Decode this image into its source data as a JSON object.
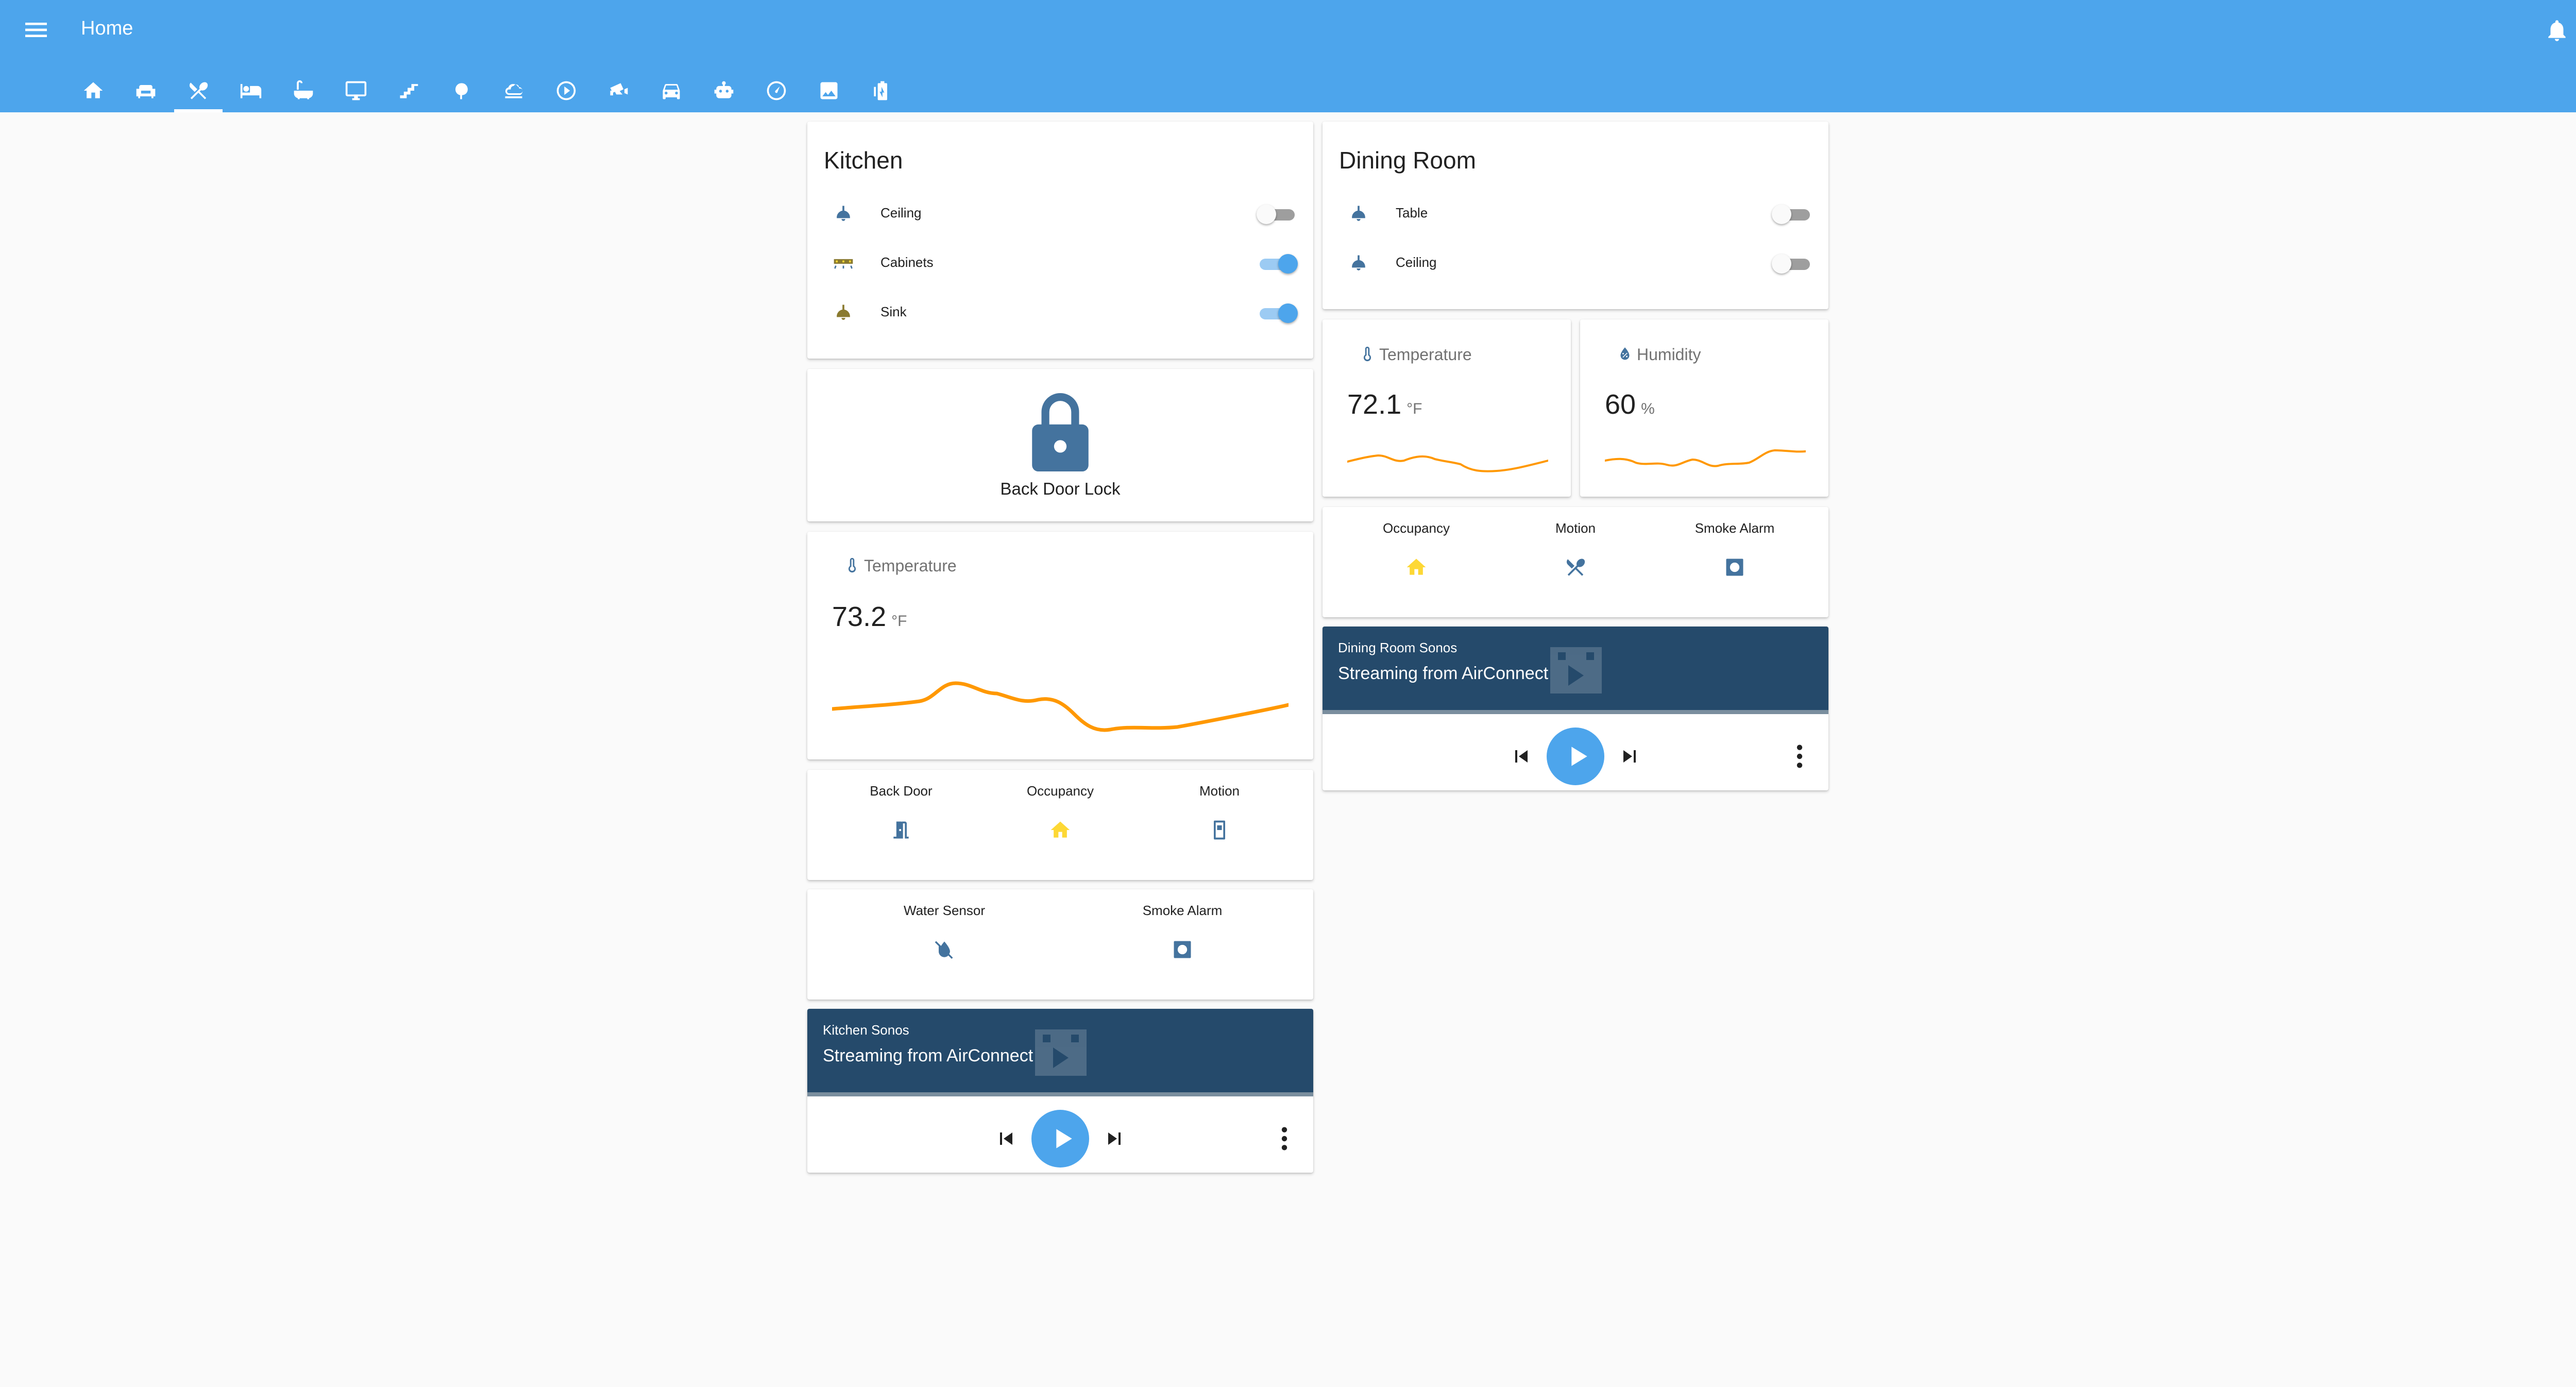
{
  "header": {
    "title": "Home",
    "tabs": [
      {
        "icon": "home-icon",
        "active": false
      },
      {
        "icon": "sofa-icon",
        "active": false
      },
      {
        "icon": "silverware-icon",
        "active": true
      },
      {
        "icon": "bed-icon",
        "active": false
      },
      {
        "icon": "bathtub-icon",
        "active": false
      },
      {
        "icon": "monitor-icon",
        "active": false
      },
      {
        "icon": "stairs-icon",
        "active": false
      },
      {
        "icon": "tree-icon",
        "active": false
      },
      {
        "icon": "weather-icon",
        "active": false
      },
      {
        "icon": "play-circle-icon",
        "active": false
      },
      {
        "icon": "cctv-icon",
        "active": false
      },
      {
        "icon": "car-icon",
        "active": false
      },
      {
        "icon": "robot-icon",
        "active": false
      },
      {
        "icon": "gauge-icon",
        "active": false
      },
      {
        "icon": "image-icon",
        "active": false
      },
      {
        "icon": "battery-charging-icon",
        "active": false
      }
    ]
  },
  "kitchen": {
    "title": "Kitchen",
    "entities": [
      {
        "label": "Ceiling",
        "icon": "ceiling-light-icon",
        "on": false
      },
      {
        "label": "Cabinets",
        "icon": "led-strip-icon",
        "on": true
      },
      {
        "label": "Sink",
        "icon": "ceiling-light-icon",
        "on": true
      }
    ],
    "lock": {
      "label": "Back Door Lock",
      "icon": "lock-icon"
    },
    "temperature": {
      "name": "Temperature",
      "value": "73.2",
      "unit": "°F",
      "icon": "thermometer-icon"
    },
    "glance1": [
      {
        "label": "Back Door",
        "icon": "door-open-icon"
      },
      {
        "label": "Occupancy",
        "icon": "home-icon"
      },
      {
        "label": "Motion",
        "icon": "motion-sensor-icon"
      }
    ],
    "glance2": [
      {
        "label": "Water Sensor",
        "icon": "water-off-icon"
      },
      {
        "label": "Smoke Alarm",
        "icon": "smoke-detector-icon"
      }
    ],
    "media": {
      "name": "Kitchen Sonos",
      "status": "Streaming from AirConnect"
    }
  },
  "dining": {
    "title": "Dining Room",
    "entities": [
      {
        "label": "Table",
        "icon": "ceiling-light-icon",
        "on": false
      },
      {
        "label": "Ceiling",
        "icon": "ceiling-light-icon",
        "on": false
      }
    ],
    "temperature": {
      "name": "Temperature",
      "value": "72.1",
      "unit": "°F",
      "icon": "thermometer-icon"
    },
    "humidity": {
      "name": "Humidity",
      "value": "60",
      "unit": "%",
      "icon": "water-percent-icon"
    },
    "glance": [
      {
        "label": "Occupancy",
        "icon": "home-icon"
      },
      {
        "label": "Motion",
        "icon": "silverware-icon"
      },
      {
        "label": "Smoke Alarm",
        "icon": "smoke-detector-icon"
      }
    ],
    "media": {
      "name": "Dining Room Sonos",
      "status": "Streaming from AirConnect"
    }
  },
  "colors": {
    "header": "#4da5ec",
    "icon_off": "#44739e",
    "icon_on": "#fdd835",
    "media_bg": "#254a6b",
    "sparkline": "#ff9800"
  }
}
